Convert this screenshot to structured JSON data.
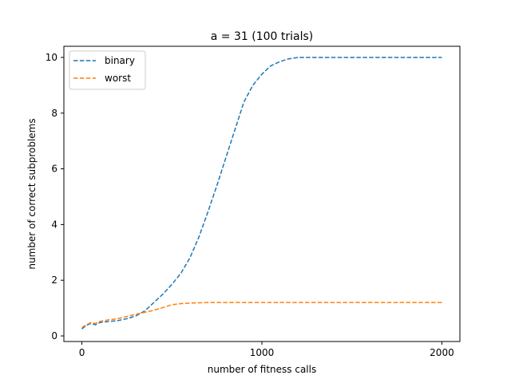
{
  "chart_data": {
    "type": "line",
    "title": "a = 31 (100 trials)",
    "xlabel": "number of fitness calls",
    "ylabel": "number of correct subproblems",
    "xlim": [
      -100,
      2100
    ],
    "ylim": [
      -0.2,
      10.4
    ],
    "xticks": [
      0,
      1000,
      2000
    ],
    "yticks": [
      0,
      2,
      4,
      6,
      8,
      10
    ],
    "grid": false,
    "legend_position": "top-left",
    "series": [
      {
        "name": "binary",
        "color": "#1f77b4",
        "linestyle": "dashed",
        "x": [
          0,
          25,
          50,
          75,
          100,
          150,
          200,
          250,
          300,
          350,
          400,
          450,
          500,
          550,
          600,
          650,
          700,
          750,
          800,
          850,
          900,
          950,
          1000,
          1050,
          1100,
          1150,
          1200,
          1300,
          1500,
          1750,
          2000
        ],
        "y": [
          0.25,
          0.38,
          0.45,
          0.4,
          0.48,
          0.52,
          0.55,
          0.62,
          0.72,
          0.9,
          1.2,
          1.5,
          1.85,
          2.25,
          2.8,
          3.55,
          4.45,
          5.4,
          6.4,
          7.4,
          8.4,
          9.0,
          9.4,
          9.7,
          9.85,
          9.95,
          10.0,
          10.0,
          10.0,
          10.0,
          10.0
        ]
      },
      {
        "name": "worst",
        "color": "#ff7f0e",
        "linestyle": "dashed",
        "x": [
          0,
          25,
          50,
          75,
          100,
          150,
          200,
          250,
          300,
          350,
          400,
          450,
          500,
          550,
          600,
          650,
          700,
          800,
          1000,
          1500,
          2000
        ],
        "y": [
          0.3,
          0.4,
          0.48,
          0.45,
          0.52,
          0.58,
          0.62,
          0.7,
          0.78,
          0.85,
          0.92,
          1.02,
          1.12,
          1.16,
          1.18,
          1.19,
          1.2,
          1.2,
          1.2,
          1.2,
          1.2
        ]
      }
    ]
  }
}
